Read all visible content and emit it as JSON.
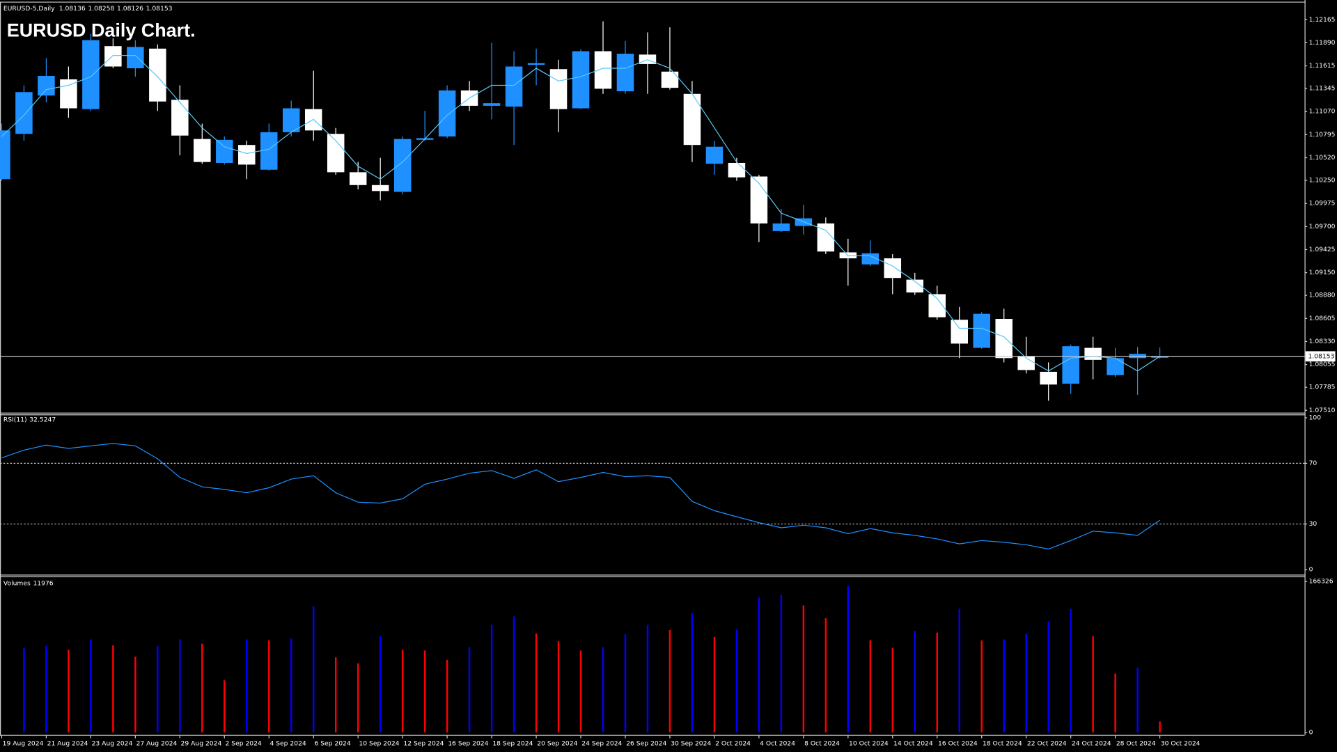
{
  "chart_data": [
    {
      "type": "candlestick",
      "title": "EURUSD Daily Chart.",
      "symbol": "EURUSD-5,Daily",
      "categories": [
        "19 Aug 2024",
        null,
        "21 Aug 2024",
        null,
        "23 Aug 2024",
        null,
        "27 Aug 2024",
        null,
        "29 Aug 2024",
        null,
        "2 Sep 2024",
        null,
        "4 Sep 2024",
        null,
        "6 Sep 2024",
        null,
        "10 Sep 2024",
        null,
        "12 Sep 2024",
        null,
        "16 Sep 2024",
        null,
        "18 Sep 2024",
        null,
        "20 Sep 2024",
        null,
        "24 Sep 2024",
        null,
        "26 Sep 2024",
        null,
        "30 Sep 2024",
        null,
        "2 Oct 2024",
        null,
        "4 Oct 2024",
        null,
        "8 Oct 2024",
        null,
        "10 Oct 2024",
        null,
        "14 Oct 2024",
        null,
        "16 Oct 2024",
        null,
        "18 Oct 2024",
        null,
        "22 Oct 2024",
        null,
        "24 Oct 2024",
        null,
        "28 Oct 2024",
        null,
        "30 Oct 2024"
      ],
      "open": [
        1.10265,
        1.10804,
        1.11261,
        1.11454,
        1.11099,
        1.1185,
        1.11586,
        1.1182,
        1.1121,
        1.10743,
        1.10458,
        1.10672,
        1.10377,
        1.10824,
        1.11099,
        1.10804,
        1.10347,
        1.10194,
        1.10113,
        1.10733,
        1.10773,
        1.11322,
        1.11139,
        1.11129,
        1.11627,
        1.11576,
        1.11109,
        1.11789,
        1.11312,
        1.11749,
        1.11546,
        1.11281,
        1.10448,
        1.10458,
        1.10296,
        1.09646,
        1.09707,
        1.09737,
        1.09392,
        1.09249,
        1.09321,
        1.09067,
        1.08894,
        1.08589,
        1.08254,
        1.08599,
        1.08152,
        1.07969,
        1.07827,
        1.08254,
        1.07929,
        1.08132,
        1.08136
      ],
      "high": [
        1.10926,
        1.11383,
        1.11708,
        1.11607,
        1.11993,
        1.11942,
        1.11921,
        1.11871,
        1.11383,
        1.10926,
        1.10773,
        1.10723,
        1.10926,
        1.112,
        1.11556,
        1.10875,
        1.10469,
        1.10519,
        1.10773,
        1.11078,
        1.11383,
        1.11434,
        1.11891,
        1.11789,
        1.1182,
        1.11688,
        1.1181,
        1.12145,
        1.11911,
        1.12013,
        1.12074,
        1.11434,
        1.10723,
        1.10519,
        1.10316,
        1.0991,
        1.09961,
        1.09808,
        1.09554,
        1.09534,
        1.09371,
        1.09148,
        1.08995,
        1.08741,
        1.0868,
        1.08721,
        1.08386,
        1.08081,
        1.08294,
        1.08386,
        1.08254,
        1.08264,
        1.08258
      ],
      "low": [
        1.10245,
        1.10723,
        1.1118,
        1.10997,
        1.11078,
        1.11586,
        1.11485,
        1.11078,
        1.1055,
        1.10448,
        1.10438,
        1.10265,
        1.10367,
        1.10773,
        1.10723,
        1.10316,
        1.10143,
        1.10011,
        1.10083,
        1.10723,
        1.10753,
        1.11078,
        1.10977,
        1.10672,
        1.11383,
        1.10824,
        1.11099,
        1.11281,
        1.11281,
        1.11281,
        1.11332,
        1.10469,
        1.10316,
        1.10245,
        1.09514,
        1.09635,
        1.09605,
        1.09371,
        1.08995,
        1.09229,
        1.08894,
        1.08884,
        1.08589,
        1.08132,
        1.08244,
        1.08081,
        1.07949,
        1.07624,
        1.07705,
        1.07878,
        1.07908,
        1.07695,
        1.08126
      ],
      "close": [
        1.10845,
        1.11302,
        1.11495,
        1.11109,
        1.11921,
        1.11607,
        1.1184,
        1.1119,
        1.10784,
        1.10469,
        1.10733,
        1.10438,
        1.10824,
        1.11109,
        1.10845,
        1.10347,
        1.10194,
        1.10123,
        1.10743,
        1.10753,
        1.11322,
        1.11139,
        1.1117,
        1.11607,
        1.11647,
        1.11099,
        1.11789,
        1.11342,
        1.11759,
        1.11637,
        1.11353,
        1.10672,
        1.10651,
        1.10286,
        1.09737,
        1.09737,
        1.09798,
        1.09402,
        1.09321,
        1.09381,
        1.09087,
        1.08914,
        1.08619,
        1.08305,
        1.0866,
        1.08132,
        1.0799,
        1.07817,
        1.08274,
        1.08111,
        1.08132,
        1.08183,
        1.08153
      ],
      "up_color": "#1e90ff",
      "down_color": "#ffffff",
      "ma": {
        "color": "#5bc8f5",
        "values": [
          1.10773,
          1.11027,
          1.11332,
          1.11383,
          1.11485,
          1.11739,
          1.11739,
          1.11485,
          1.1118,
          1.10875,
          1.10651,
          1.1057,
          1.10621,
          1.10824,
          1.10977,
          1.10723,
          1.10418,
          1.10265,
          1.10469,
          1.10743,
          1.11027,
          1.11231,
          1.11383,
          1.11383,
          1.11586,
          1.11434,
          1.11485,
          1.11586,
          1.11586,
          1.11688,
          1.11586,
          1.11281,
          1.10875,
          1.10469,
          1.10215,
          1.09859,
          1.09757,
          1.09656,
          1.09351,
          1.09351,
          1.09229,
          1.09046,
          1.08843,
          1.08487,
          1.08487,
          1.08386,
          1.08132,
          1.07979,
          1.08132,
          1.08152,
          1.08132,
          1.07979,
          1.08152
        ]
      },
      "ylim": [
        1.07492,
        1.12369
      ],
      "yticks": [
        1.12165,
        {
          "value": 1.1189,
          "label": "1.11890"
        },
        1.11615,
        1.11345,
        {
          "value": 1.1107,
          "label": "1.11070"
        },
        1.10795,
        {
          "value": 1.1052,
          "label": "1.10520"
        },
        {
          "value": 1.1025,
          "label": "1.10250"
        },
        1.09975,
        {
          "value": 1.097,
          "label": "1.09700"
        },
        1.09425,
        {
          "value": 1.0915,
          "label": "1.09150"
        },
        {
          "value": 1.0888,
          "label": "1.08880"
        },
        1.08605,
        {
          "value": 1.0833,
          "label": "1.08330"
        },
        1.08055,
        1.07785,
        {
          "value": 1.0751,
          "label": "1.07510"
        }
      ],
      "price_line": true
    },
    {
      "type": "line",
      "name": "RSI(11)",
      "color": "#1e90ff",
      "values": [
        73.6,
        78.7,
        82.0,
        79.8,
        81.5,
        83.1,
        81.5,
        73.0,
        60.7,
        54.5,
        52.8,
        50.6,
        53.9,
        59.6,
        61.8,
        50.6,
        44.4,
        43.8,
        46.6,
        56.2,
        59.6,
        63.5,
        65.2,
        60.1,
        65.7,
        57.9,
        60.7,
        64.0,
        61.2,
        61.8,
        60.7,
        44.9,
        38.8,
        34.8,
        30.9,
        27.5,
        29.2,
        27.5,
        23.6,
        27.0,
        24.2,
        22.5,
        20.2,
        16.9,
        19.1,
        18.0,
        16.3,
        13.5,
        19.1,
        25.3,
        24.2,
        22.5,
        32.5247
      ],
      "ylim": [
        0,
        100
      ],
      "yticks": [
        100,
        70,
        30,
        0
      ],
      "levels": [
        70,
        30
      ]
    },
    {
      "type": "bar",
      "name": "Volumes",
      "up_color": "#0000ff",
      "down_color": "#ff0000",
      "values": [
        null,
        93030,
        95850,
        91150,
        102430,
        95850,
        83630,
        94910,
        102430,
        97730,
        57320,
        102430,
        101490,
        103370,
        139080,
        82690,
        76120,
        106190,
        91150,
        90210,
        79870,
        93970,
        118400,
        127800,
        109010,
        100550,
        90210,
        93970,
        108070,
        118400,
        112760,
        131560,
        105250,
        113700,
        148470,
        151290,
        140020,
        125920,
        161630,
        101490,
        93030,
        111820,
        109950,
        136260,
        101490,
        102430,
        109010,
        122160,
        136260,
        106190,
        64840,
        71420,
        11976
      ],
      "ylim": [
        0,
        166326
      ],
      "yticks": [
        166326,
        0
      ]
    }
  ]
}
